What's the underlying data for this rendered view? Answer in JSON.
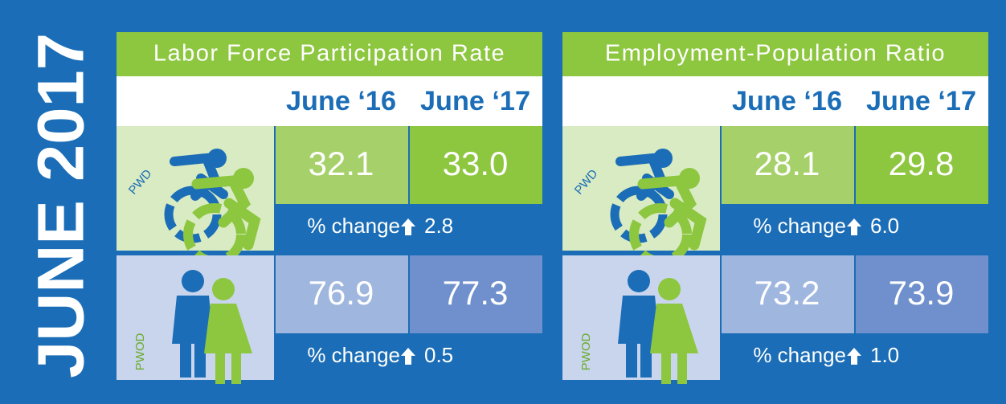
{
  "side_label": "JUNE 2017",
  "panels": [
    {
      "title": "Labor Force Participation Rate",
      "columns": [
        "June ‘16",
        "June ‘17"
      ],
      "rows": [
        {
          "group": "PWD",
          "values": [
            "32.1",
            "33.0"
          ],
          "change_label": "% change",
          "change": "2.8"
        },
        {
          "group": "PWOD",
          "values": [
            "76.9",
            "77.3"
          ],
          "change_label": "% change",
          "change": "0.5"
        }
      ]
    },
    {
      "title": "Employment-Population Ratio",
      "columns": [
        "June ‘16",
        "June ‘17"
      ],
      "rows": [
        {
          "group": "PWD",
          "values": [
            "28.1",
            "29.8"
          ],
          "change_label": "% change",
          "change": "6.0"
        },
        {
          "group": "PWOD",
          "values": [
            "73.2",
            "73.9"
          ],
          "change_label": "% change",
          "change": "1.0"
        }
      ]
    }
  ]
}
